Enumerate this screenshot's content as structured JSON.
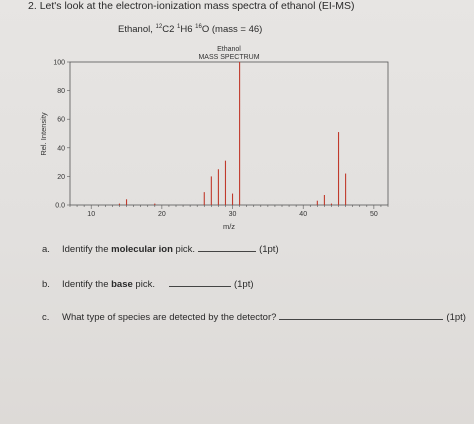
{
  "question": {
    "number": "2.",
    "text": "Let's look at the electron-ionization mass spectra of ethanol (EI-MS)",
    "compound": "Ethanol,",
    "formula_parts": [
      {
        "sup": "12",
        "base": "C"
      },
      {
        "sub_text": "2 "
      },
      {
        "sup": "1",
        "base": "H"
      },
      {
        "sub_text": "6 "
      },
      {
        "sup": "16",
        "base": "O"
      }
    ],
    "mass_note": "(mass = 46)"
  },
  "chart_data": {
    "type": "bar",
    "title": "Ethanol",
    "subtitle": "MASS SPECTRUM",
    "xlabel": "m/z",
    "ylabel": "Rel. Intensity",
    "xlim": [
      7,
      52
    ],
    "ylim": [
      0,
      100
    ],
    "xticks": [
      10,
      20,
      30,
      40,
      50
    ],
    "yticks": [
      0,
      20,
      40,
      60,
      80,
      100
    ],
    "ytick_labels": [
      "0.0",
      "20",
      "40",
      "60",
      "80",
      "100"
    ],
    "grid": false,
    "x": [
      14,
      15,
      19,
      26,
      27,
      28,
      29,
      30,
      31,
      42,
      43,
      44,
      45,
      46
    ],
    "values": [
      1,
      4,
      1,
      9,
      20,
      25,
      31,
      8,
      100,
      3,
      7,
      1,
      51,
      22
    ],
    "color": "#c0392b"
  },
  "questions": {
    "a": {
      "letter": "a.",
      "pre": "Identify the ",
      "bold": "molecular ion",
      "post": " pick.",
      "points": "(1pt)"
    },
    "b": {
      "letter": "b.",
      "pre": "Identify the ",
      "bold": "base",
      "post": " pick.",
      "points": "(1pt)"
    },
    "c": {
      "letter": "c.",
      "pre": "What type of species are detected by the detector?",
      "points": "(1pt)"
    }
  }
}
